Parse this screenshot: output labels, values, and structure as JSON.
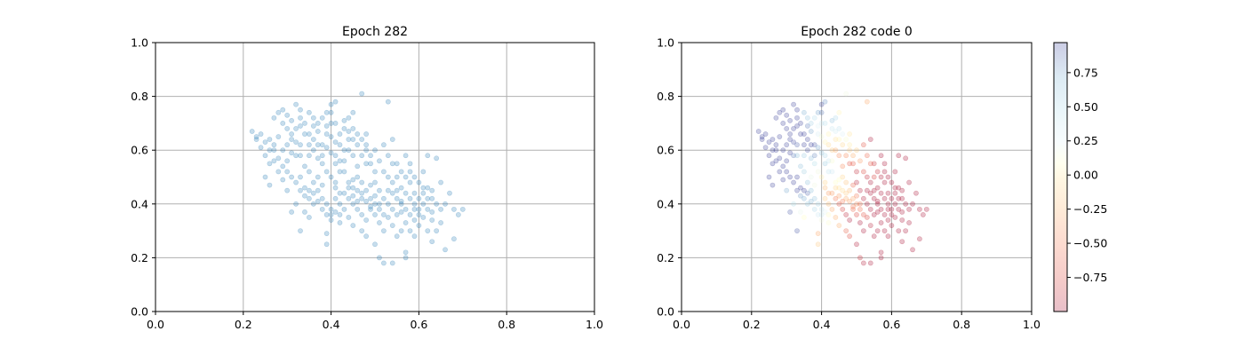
{
  "chart_data": [
    {
      "type": "scatter",
      "title": "Epoch 282",
      "xlabel": "",
      "ylabel": "",
      "xlim": [
        0.0,
        1.0
      ],
      "ylim": [
        0.0,
        1.0
      ],
      "xticks": [
        "0.0",
        "0.2",
        "0.4",
        "0.6",
        "0.8",
        "1.0"
      ],
      "yticks": [
        "0.0",
        "0.2",
        "0.4",
        "0.6",
        "0.8",
        "1.0"
      ],
      "grid": true,
      "point_color": "#1f77b4",
      "point_alpha": 0.25,
      "points": [
        [
          0.22,
          0.67
        ],
        [
          0.23,
          0.64
        ],
        [
          0.24,
          0.66
        ],
        [
          0.25,
          0.63
        ],
        [
          0.25,
          0.58
        ],
        [
          0.26,
          0.55
        ],
        [
          0.25,
          0.5
        ],
        [
          0.26,
          0.47
        ],
        [
          0.27,
          0.62
        ],
        [
          0.27,
          0.72
        ],
        [
          0.28,
          0.74
        ],
        [
          0.29,
          0.75
        ],
        [
          0.28,
          0.65
        ],
        [
          0.29,
          0.6
        ],
        [
          0.3,
          0.56
        ],
        [
          0.31,
          0.59
        ],
        [
          0.3,
          0.68
        ],
        [
          0.31,
          0.71
        ],
        [
          0.32,
          0.77
        ],
        [
          0.33,
          0.75
        ],
        [
          0.33,
          0.69
        ],
        [
          0.32,
          0.63
        ],
        [
          0.33,
          0.58
        ],
        [
          0.34,
          0.54
        ],
        [
          0.33,
          0.5
        ],
        [
          0.34,
          0.46
        ],
        [
          0.35,
          0.62
        ],
        [
          0.35,
          0.66
        ],
        [
          0.36,
          0.72
        ],
        [
          0.37,
          0.7
        ],
        [
          0.36,
          0.6
        ],
        [
          0.37,
          0.57
        ],
        [
          0.38,
          0.55
        ],
        [
          0.38,
          0.62
        ],
        [
          0.39,
          0.66
        ],
        [
          0.39,
          0.74
        ],
        [
          0.4,
          0.77
        ],
        [
          0.41,
          0.78
        ],
        [
          0.4,
          0.7
        ],
        [
          0.41,
          0.63
        ],
        [
          0.4,
          0.59
        ],
        [
          0.41,
          0.55
        ],
        [
          0.42,
          0.52
        ],
        [
          0.41,
          0.48
        ],
        [
          0.42,
          0.44
        ],
        [
          0.43,
          0.6
        ],
        [
          0.43,
          0.68
        ],
        [
          0.44,
          0.72
        ],
        [
          0.45,
          0.74
        ],
        [
          0.44,
          0.64
        ],
        [
          0.45,
          0.58
        ],
        [
          0.46,
          0.54
        ],
        [
          0.45,
          0.49
        ],
        [
          0.46,
          0.45
        ],
        [
          0.47,
          0.42
        ],
        [
          0.47,
          0.81
        ],
        [
          0.48,
          0.66
        ],
        [
          0.48,
          0.6
        ],
        [
          0.49,
          0.55
        ],
        [
          0.5,
          0.52
        ],
        [
          0.49,
          0.47
        ],
        [
          0.5,
          0.43
        ],
        [
          0.51,
          0.4
        ],
        [
          0.52,
          0.62
        ],
        [
          0.53,
          0.58
        ],
        [
          0.53,
          0.78
        ],
        [
          0.54,
          0.64
        ],
        [
          0.54,
          0.55
        ],
        [
          0.55,
          0.5
        ],
        [
          0.55,
          0.45
        ],
        [
          0.56,
          0.41
        ],
        [
          0.56,
          0.37
        ],
        [
          0.57,
          0.58
        ],
        [
          0.58,
          0.55
        ],
        [
          0.58,
          0.48
        ],
        [
          0.59,
          0.44
        ],
        [
          0.59,
          0.4
        ],
        [
          0.6,
          0.36
        ],
        [
          0.61,
          0.52
        ],
        [
          0.62,
          0.58
        ],
        [
          0.62,
          0.46
        ],
        [
          0.63,
          0.42
        ],
        [
          0.63,
          0.37
        ],
        [
          0.64,
          0.57
        ],
        [
          0.65,
          0.48
        ],
        [
          0.65,
          0.33
        ],
        [
          0.66,
          0.4
        ],
        [
          0.67,
          0.44
        ],
        [
          0.68,
          0.38
        ],
        [
          0.69,
          0.36
        ],
        [
          0.7,
          0.38
        ],
        [
          0.68,
          0.27
        ],
        [
          0.66,
          0.23
        ],
        [
          0.57,
          0.22
        ],
        [
          0.57,
          0.2
        ],
        [
          0.54,
          0.18
        ],
        [
          0.52,
          0.18
        ],
        [
          0.51,
          0.2
        ],
        [
          0.5,
          0.25
        ],
        [
          0.48,
          0.28
        ],
        [
          0.47,
          0.3
        ],
        [
          0.45,
          0.32
        ],
        [
          0.44,
          0.35
        ],
        [
          0.42,
          0.33
        ],
        [
          0.4,
          0.36
        ],
        [
          0.39,
          0.29
        ],
        [
          0.39,
          0.25
        ],
        [
          0.35,
          0.35
        ],
        [
          0.34,
          0.37
        ],
        [
          0.33,
          0.3
        ],
        [
          0.32,
          0.4
        ],
        [
          0.31,
          0.37
        ],
        [
          0.3,
          0.45
        ],
        [
          0.29,
          0.49
        ],
        [
          0.28,
          0.52
        ],
        [
          0.27,
          0.56
        ],
        [
          0.26,
          0.6
        ],
        [
          0.24,
          0.61
        ],
        [
          0.23,
          0.65
        ],
        [
          0.35,
          0.52
        ],
        [
          0.36,
          0.48
        ],
        [
          0.37,
          0.45
        ],
        [
          0.38,
          0.42
        ],
        [
          0.39,
          0.4
        ],
        [
          0.4,
          0.38
        ],
        [
          0.41,
          0.42
        ],
        [
          0.42,
          0.4
        ],
        [
          0.43,
          0.38
        ],
        [
          0.44,
          0.42
        ],
        [
          0.45,
          0.4
        ],
        [
          0.46,
          0.38
        ],
        [
          0.47,
          0.36
        ],
        [
          0.48,
          0.34
        ],
        [
          0.49,
          0.38
        ],
        [
          0.5,
          0.36
        ],
        [
          0.51,
          0.33
        ],
        [
          0.52,
          0.3
        ],
        [
          0.53,
          0.35
        ],
        [
          0.54,
          0.32
        ],
        [
          0.55,
          0.28
        ],
        [
          0.56,
          0.3
        ],
        [
          0.57,
          0.33
        ],
        [
          0.58,
          0.3
        ],
        [
          0.59,
          0.28
        ],
        [
          0.6,
          0.32
        ],
        [
          0.61,
          0.35
        ],
        [
          0.62,
          0.3
        ],
        [
          0.63,
          0.26
        ],
        [
          0.64,
          0.3
        ],
        [
          0.35,
          0.42
        ],
        [
          0.36,
          0.4
        ],
        [
          0.37,
          0.5
        ],
        [
          0.38,
          0.47
        ],
        [
          0.39,
          0.52
        ],
        [
          0.4,
          0.5
        ],
        [
          0.41,
          0.46
        ],
        [
          0.42,
          0.56
        ],
        [
          0.43,
          0.52
        ],
        [
          0.44,
          0.48
        ],
        [
          0.45,
          0.46
        ],
        [
          0.46,
          0.5
        ],
        [
          0.47,
          0.48
        ],
        [
          0.48,
          0.45
        ],
        [
          0.49,
          0.42
        ],
        [
          0.5,
          0.48
        ],
        [
          0.51,
          0.45
        ],
        [
          0.52,
          0.42
        ],
        [
          0.53,
          0.4
        ],
        [
          0.54,
          0.44
        ],
        [
          0.55,
          0.42
        ],
        [
          0.56,
          0.46
        ],
        [
          0.57,
          0.44
        ],
        [
          0.58,
          0.42
        ],
        [
          0.59,
          0.38
        ],
        [
          0.6,
          0.42
        ],
        [
          0.61,
          0.4
        ],
        [
          0.62,
          0.38
        ],
        [
          0.63,
          0.34
        ],
        [
          0.3,
          0.62
        ],
        [
          0.31,
          0.64
        ],
        [
          0.32,
          0.58
        ],
        [
          0.33,
          0.62
        ],
        [
          0.34,
          0.66
        ],
        [
          0.35,
          0.58
        ],
        [
          0.36,
          0.64
        ],
        [
          0.37,
          0.62
        ],
        [
          0.38,
          0.58
        ],
        [
          0.39,
          0.61
        ],
        [
          0.4,
          0.65
        ],
        [
          0.41,
          0.58
        ],
        [
          0.42,
          0.62
        ],
        [
          0.43,
          0.56
        ],
        [
          0.44,
          0.6
        ],
        [
          0.45,
          0.64
        ],
        [
          0.46,
          0.62
        ],
        [
          0.47,
          0.58
        ],
        [
          0.48,
          0.55
        ],
        [
          0.49,
          0.58
        ],
        [
          0.5,
          0.6
        ],
        [
          0.51,
          0.56
        ],
        [
          0.52,
          0.52
        ],
        [
          0.53,
          0.5
        ],
        [
          0.54,
          0.48
        ],
        [
          0.55,
          0.55
        ],
        [
          0.56,
          0.52
        ],
        [
          0.57,
          0.5
        ],
        [
          0.58,
          0.52
        ],
        [
          0.59,
          0.5
        ],
        [
          0.6,
          0.48
        ],
        [
          0.61,
          0.46
        ],
        [
          0.29,
          0.7
        ],
        [
          0.3,
          0.73
        ],
        [
          0.31,
          0.66
        ],
        [
          0.32,
          0.68
        ],
        [
          0.33,
          0.72
        ],
        [
          0.34,
          0.7
        ],
        [
          0.35,
          0.74
        ],
        [
          0.36,
          0.69
        ],
        [
          0.37,
          0.67
        ],
        [
          0.38,
          0.72
        ],
        [
          0.39,
          0.69
        ],
        [
          0.4,
          0.74
        ],
        [
          0.41,
          0.7
        ],
        [
          0.42,
          0.66
        ],
        [
          0.43,
          0.71
        ],
        [
          0.44,
          0.67
        ],
        [
          0.45,
          0.68
        ],
        [
          0.46,
          0.66
        ],
        [
          0.47,
          0.64
        ],
        [
          0.48,
          0.62
        ],
        [
          0.26,
          0.64
        ],
        [
          0.27,
          0.6
        ],
        [
          0.28,
          0.57
        ],
        [
          0.29,
          0.54
        ],
        [
          0.3,
          0.52
        ],
        [
          0.31,
          0.5
        ],
        [
          0.32,
          0.48
        ],
        [
          0.33,
          0.45
        ],
        [
          0.34,
          0.43
        ],
        [
          0.35,
          0.45
        ],
        [
          0.36,
          0.44
        ],
        [
          0.37,
          0.41
        ],
        [
          0.38,
          0.38
        ],
        [
          0.39,
          0.36
        ],
        [
          0.4,
          0.34
        ],
        [
          0.41,
          0.37
        ],
        [
          0.42,
          0.36
        ],
        [
          0.43,
          0.44
        ],
        [
          0.44,
          0.46
        ],
        [
          0.45,
          0.43
        ],
        [
          0.46,
          0.41
        ],
        [
          0.47,
          0.44
        ],
        [
          0.48,
          0.41
        ],
        [
          0.49,
          0.39
        ],
        [
          0.5,
          0.4
        ],
        [
          0.51,
          0.38
        ],
        [
          0.52,
          0.36
        ],
        [
          0.53,
          0.45
        ],
        [
          0.54,
          0.38
        ],
        [
          0.55,
          0.36
        ],
        [
          0.56,
          0.4
        ],
        [
          0.57,
          0.38
        ],
        [
          0.58,
          0.36
        ],
        [
          0.59,
          0.34
        ],
        [
          0.6,
          0.38
        ],
        [
          0.61,
          0.44
        ],
        [
          0.62,
          0.42
        ],
        [
          0.63,
          0.45
        ],
        [
          0.64,
          0.4
        ],
        [
          0.65,
          0.38
        ]
      ]
    },
    {
      "type": "scatter",
      "title": "Epoch 282 code 0",
      "xlabel": "",
      "ylabel": "",
      "xlim": [
        0.0,
        1.0
      ],
      "ylim": [
        0.0,
        1.0
      ],
      "xticks": [
        "0.0",
        "0.2",
        "0.4",
        "0.6",
        "0.8",
        "1.0"
      ],
      "yticks": [
        "0.0",
        "0.2",
        "0.4",
        "0.6",
        "0.8",
        "1.0"
      ],
      "grid": true,
      "colormap": "RdYlBu",
      "point_alpha": 0.25,
      "colorbar": {
        "min": -1.0,
        "max": 0.97,
        "ticks": [
          "0.75",
          "0.50",
          "0.25",
          "0.00",
          "−0.25",
          "−0.50",
          "−0.75"
        ],
        "tick_values": [
          0.75,
          0.5,
          0.25,
          0.0,
          -0.25,
          -0.5,
          -0.75
        ]
      },
      "color_rule": "value ≈ blue (positive) on the left cluster, red (negative) on the right cluster"
    }
  ]
}
